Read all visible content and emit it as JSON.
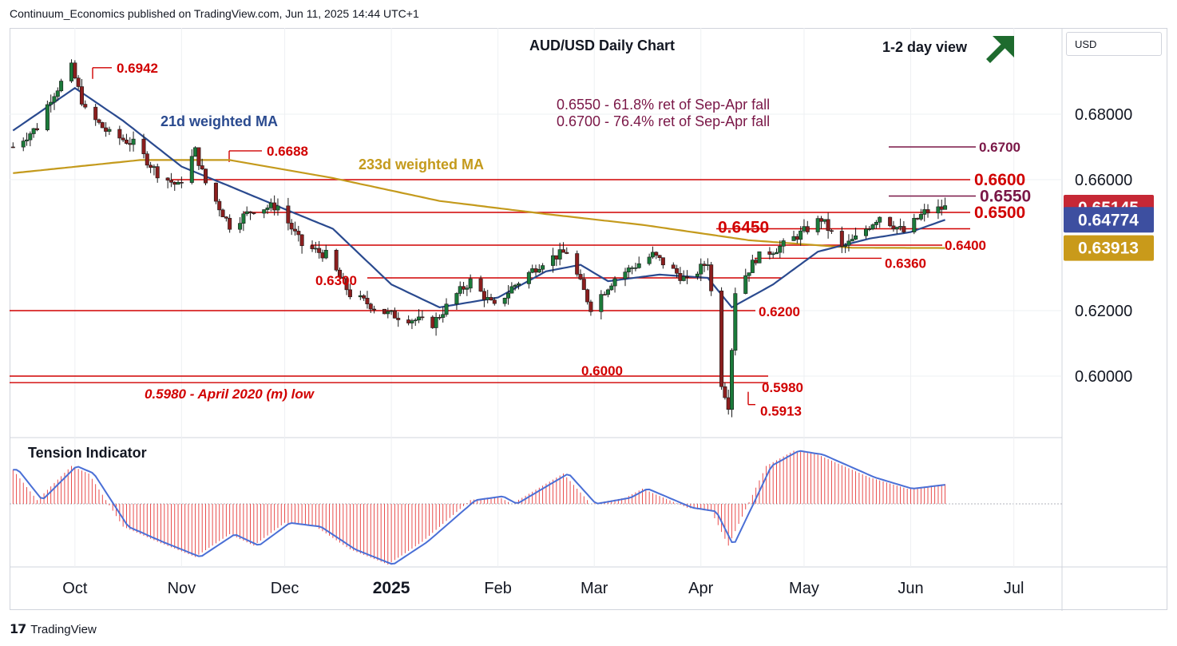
{
  "header": {
    "publisher_line": "Continuum_Economics published on TradingView.com, Jun 11, 2025 14:44 UTC+1"
  },
  "currency_selector": {
    "label": "USD"
  },
  "footer": {
    "brand": "TradingView",
    "logo_icon": "tradingview-logo-icon"
  },
  "colors": {
    "up_candle": "#1b7a3a",
    "down_candle": "#8b1e1e",
    "level_line": "#d10000",
    "ma21": "#2a4a8f",
    "ma233": "#c49a1c",
    "tension_fill": "#e63a3a",
    "tension_line": "#4a6fd6",
    "annotation_purple": "#7a1747",
    "arrow_green": "#1e6b2e",
    "price_badge": "#c62835",
    "ma21_badge": "#3d4fa0",
    "ma233_badge": "#c99a1a"
  },
  "chart_data": {
    "type": "candlestick",
    "title": "AUD/USD Daily Chart",
    "view_label": "1-2 day view",
    "view_icon": "arrow-up-right-icon",
    "y_axis": {
      "ticks": [
        "0.68000",
        "0.66000",
        "0.62000",
        "0.60000"
      ],
      "range": [
        0.588,
        0.7
      ]
    },
    "x_axis": {
      "ticks": [
        "Oct",
        "Nov",
        "Dec",
        "2025",
        "Feb",
        "Mar",
        "Apr",
        "May",
        "Jun",
        "Jul"
      ]
    },
    "annotations": {
      "fib_1": "0.6550 - 61.8% ret of Sep-Apr fall",
      "fib_2": "0.6700 - 76.4% ret of Sep-Apr fall",
      "ma21_label": "21d weighted MA",
      "ma233_label": "233d weighted MA",
      "low_note": "0.5980 - April 2020 (m) low"
    },
    "levels": [
      {
        "label": "0.6942",
        "value": 0.6942,
        "color": "red"
      },
      {
        "label": "0.6688",
        "value": 0.6688,
        "color": "red"
      },
      {
        "label": "0.6700",
        "value": 0.67,
        "color": "purple"
      },
      {
        "label": "0.6600",
        "value": 0.66,
        "color": "red"
      },
      {
        "label": "0.6550",
        "value": 0.655,
        "color": "purple"
      },
      {
        "label": "0.6500",
        "value": 0.65,
        "color": "red"
      },
      {
        "label": "0.6450",
        "value": 0.645,
        "color": "red"
      },
      {
        "label": "0.6400",
        "value": 0.64,
        "color": "red"
      },
      {
        "label": "0.6360",
        "value": 0.636,
        "color": "red"
      },
      {
        "label": "0.6300",
        "value": 0.63,
        "color": "red"
      },
      {
        "label": "0.6200",
        "value": 0.62,
        "color": "red"
      },
      {
        "label": "0.6000",
        "value": 0.6,
        "color": "red"
      },
      {
        "label": "0.5980",
        "value": 0.598,
        "color": "red"
      },
      {
        "label": "0.5913",
        "value": 0.5913,
        "color": "red"
      }
    ],
    "price_badges": [
      {
        "label": "0.65145",
        "value": 0.65145,
        "kind": "last"
      },
      {
        "label": "0.64774",
        "value": 0.64774,
        "kind": "ma21"
      },
      {
        "label": "0.63913",
        "value": 0.63913,
        "kind": "ma233"
      }
    ],
    "ohlc_anchors": [
      [
        "2024-09-13",
        0.67
      ],
      [
        "2024-09-20",
        0.676
      ],
      [
        "2024-09-24",
        0.685
      ],
      [
        "2024-09-30",
        0.6942
      ],
      [
        "2024-10-04",
        0.681
      ],
      [
        "2024-10-11",
        0.674
      ],
      [
        "2024-10-18",
        0.671
      ],
      [
        "2024-10-25",
        0.662
      ],
      [
        "2024-10-31",
        0.658
      ],
      [
        "2024-11-05",
        0.6688
      ],
      [
        "2024-11-08",
        0.659
      ],
      [
        "2024-11-15",
        0.646
      ],
      [
        "2024-11-22",
        0.651
      ],
      [
        "2024-11-29",
        0.652
      ],
      [
        "2024-12-06",
        0.64
      ],
      [
        "2024-12-13",
        0.637
      ],
      [
        "2024-12-20",
        0.625
      ],
      [
        "2024-12-31",
        0.619
      ],
      [
        "2025-01-13",
        0.616
      ],
      [
        "2025-01-20",
        0.625
      ],
      [
        "2025-01-24",
        0.629
      ],
      [
        "2025-01-31",
        0.621
      ],
      [
        "2025-02-05",
        0.627
      ],
      [
        "2025-02-14",
        0.635
      ],
      [
        "2025-02-21",
        0.638
      ],
      [
        "2025-02-28",
        0.621
      ],
      [
        "2025-03-07",
        0.63
      ],
      [
        "2025-03-18",
        0.637
      ],
      [
        "2025-03-28",
        0.629
      ],
      [
        "2025-04-03",
        0.635
      ],
      [
        "2025-04-07",
        0.598
      ],
      [
        "2025-04-09",
        0.5913
      ],
      [
        "2025-04-11",
        0.626
      ],
      [
        "2025-04-17",
        0.636
      ],
      [
        "2025-04-25",
        0.64
      ],
      [
        "2025-05-02",
        0.645
      ],
      [
        "2025-05-06",
        0.648
      ],
      [
        "2025-05-12",
        0.639
      ],
      [
        "2025-05-16",
        0.642
      ],
      [
        "2025-05-23",
        0.649
      ],
      [
        "2025-05-30",
        0.644
      ],
      [
        "2025-06-05",
        0.65
      ],
      [
        "2025-06-11",
        0.65145
      ]
    ],
    "ma21_anchors": [
      [
        "2024-09-13",
        0.675
      ],
      [
        "2024-10-01",
        0.688
      ],
      [
        "2024-10-15",
        0.678
      ],
      [
        "2024-11-01",
        0.664
      ],
      [
        "2024-11-15",
        0.658
      ],
      [
        "2024-12-01",
        0.651
      ],
      [
        "2024-12-15",
        0.645
      ],
      [
        "2025-01-01",
        0.628
      ],
      [
        "2025-01-15",
        0.621
      ],
      [
        "2025-02-01",
        0.624
      ],
      [
        "2025-02-15",
        0.632
      ],
      [
        "2025-02-25",
        0.634
      ],
      [
        "2025-03-05",
        0.629
      ],
      [
        "2025-03-20",
        0.631
      ],
      [
        "2025-04-03",
        0.63
      ],
      [
        "2025-04-10",
        0.621
      ],
      [
        "2025-04-22",
        0.628
      ],
      [
        "2025-05-05",
        0.638
      ],
      [
        "2025-05-20",
        0.642
      ],
      [
        "2025-06-01",
        0.644
      ],
      [
        "2025-06-11",
        0.64774
      ]
    ],
    "ma233_anchors": [
      [
        "2024-09-13",
        0.662
      ],
      [
        "2024-10-20",
        0.666
      ],
      [
        "2024-11-15",
        0.666
      ],
      [
        "2024-12-15",
        0.6605
      ],
      [
        "2025-01-15",
        0.6535
      ],
      [
        "2025-02-15",
        0.6495
      ],
      [
        "2025-03-15",
        0.6462
      ],
      [
        "2025-04-15",
        0.6415
      ],
      [
        "2025-05-15",
        0.6392
      ],
      [
        "2025-06-11",
        0.63913
      ]
    ],
    "tension_indicator": {
      "title": "Tension Indicator",
      "anchors": [
        [
          "2024-09-13",
          0.45
        ],
        [
          "2024-09-20",
          0.05
        ],
        [
          "2024-09-30",
          0.5
        ],
        [
          "2024-10-05",
          0.4
        ],
        [
          "2024-10-15",
          -0.3
        ],
        [
          "2024-10-25",
          -0.5
        ],
        [
          "2024-11-05",
          -0.7
        ],
        [
          "2024-11-15",
          -0.4
        ],
        [
          "2024-11-22",
          -0.55
        ],
        [
          "2024-12-01",
          -0.25
        ],
        [
          "2024-12-10",
          -0.3
        ],
        [
          "2024-12-20",
          -0.6
        ],
        [
          "2024-12-31",
          -0.8
        ],
        [
          "2025-01-10",
          -0.5
        ],
        [
          "2025-01-24",
          0.05
        ],
        [
          "2025-02-01",
          0.1
        ],
        [
          "2025-02-05",
          0.0
        ],
        [
          "2025-02-20",
          0.4
        ],
        [
          "2025-02-28",
          0.0
        ],
        [
          "2025-03-10",
          0.08
        ],
        [
          "2025-03-15",
          0.2
        ],
        [
          "2025-03-28",
          -0.05
        ],
        [
          "2025-04-04",
          -0.1
        ],
        [
          "2025-04-09",
          -0.55
        ],
        [
          "2025-04-20",
          0.5
        ],
        [
          "2025-04-28",
          0.7
        ],
        [
          "2025-05-05",
          0.65
        ],
        [
          "2025-05-20",
          0.35
        ],
        [
          "2025-05-31",
          0.2
        ],
        [
          "2025-06-11",
          0.26
        ]
      ]
    }
  }
}
